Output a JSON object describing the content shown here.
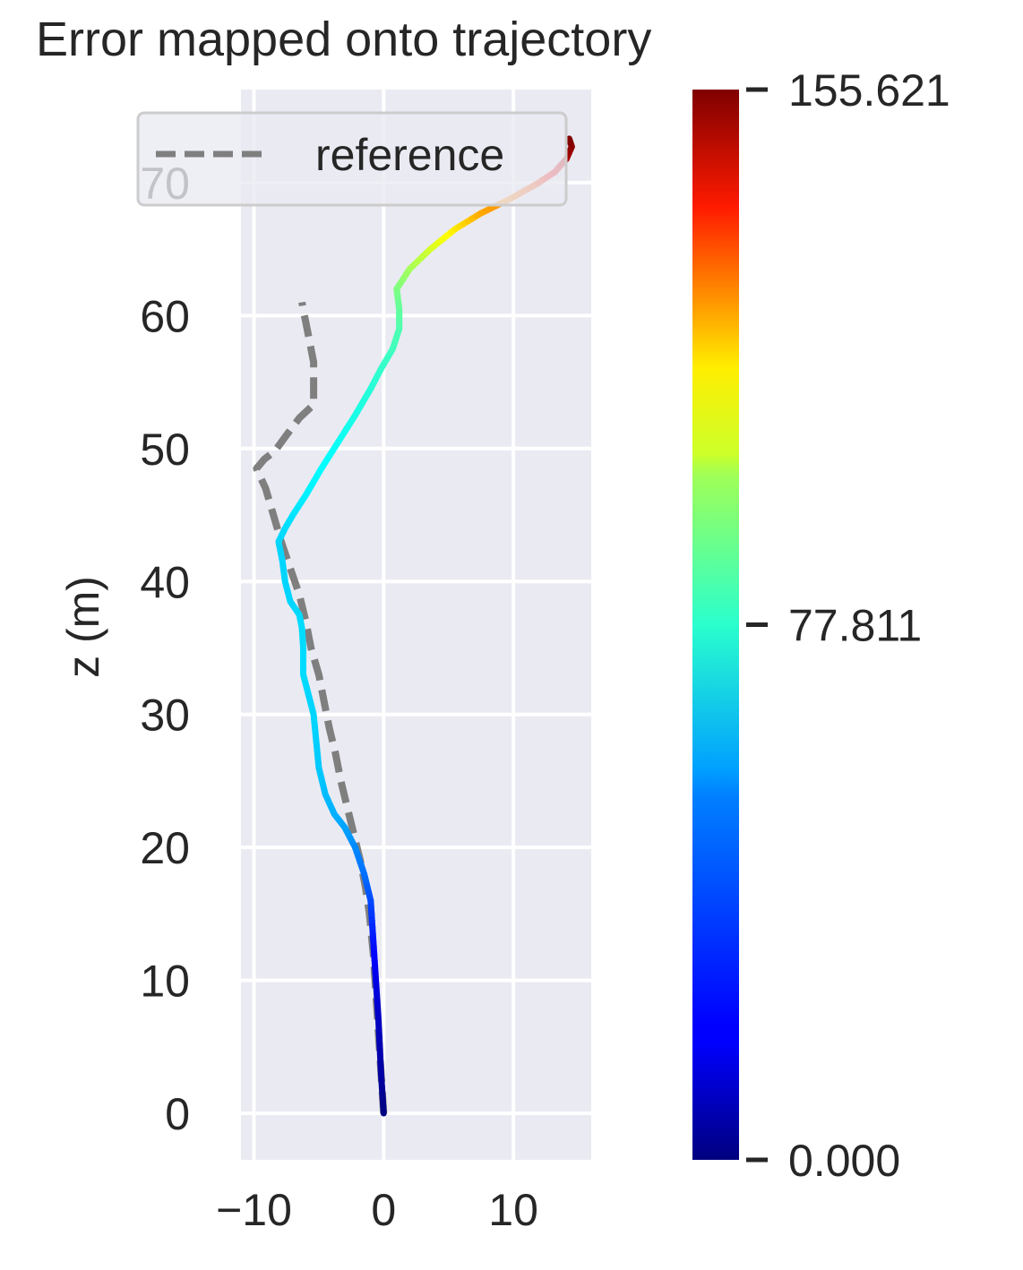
{
  "chart_data": {
    "type": "line",
    "title": "Error mapped onto trajectory",
    "xlabel": "",
    "ylabel": "z (m)",
    "xlim": [
      -11,
      16
    ],
    "ylim": [
      -3.5,
      77
    ],
    "x_ticks": [
      -10,
      0,
      10
    ],
    "x_tick_labels": [
      "−10",
      "0",
      "10"
    ],
    "y_ticks": [
      0,
      10,
      20,
      30,
      40,
      50,
      60,
      70
    ],
    "y_tick_labels": [
      "0",
      "10",
      "20",
      "30",
      "40",
      "50",
      "60",
      "70"
    ],
    "grid": true,
    "legend": {
      "placement": "top-left",
      "entries": [
        "reference"
      ]
    },
    "series": [
      {
        "name": "reference",
        "style": "dashed",
        "color": "#7f7f7f",
        "points": [
          [
            0,
            0
          ],
          [
            -0.2,
            3
          ],
          [
            -0.4,
            6
          ],
          [
            -0.6,
            9
          ],
          [
            -0.8,
            12
          ],
          [
            -1.1,
            15
          ],
          [
            -1.4,
            17
          ],
          [
            -1.8,
            19
          ],
          [
            -2.3,
            21
          ],
          [
            -2.8,
            23
          ],
          [
            -3.3,
            25
          ],
          [
            -3.7,
            27
          ],
          [
            -4.2,
            29
          ],
          [
            -4.6,
            31
          ],
          [
            -5.0,
            33
          ],
          [
            -5.6,
            35
          ],
          [
            -6.0,
            37
          ],
          [
            -6.5,
            39
          ],
          [
            -7.2,
            41
          ],
          [
            -7.9,
            43
          ],
          [
            -8.5,
            45
          ],
          [
            -9.1,
            47
          ],
          [
            -9.8,
            48.5
          ],
          [
            -9.2,
            49.2
          ],
          [
            -8.4,
            49.8
          ],
          [
            -7.5,
            51
          ],
          [
            -6.5,
            52.3
          ],
          [
            -5.4,
            53.3
          ],
          [
            -5.4,
            54.5
          ],
          [
            -5.4,
            55.5
          ],
          [
            -5.4,
            56.5
          ],
          [
            -5.6,
            57.5
          ],
          [
            -5.8,
            58.5
          ],
          [
            -6.0,
            59.5
          ],
          [
            -6.2,
            60.4
          ],
          [
            -6.3,
            61
          ]
        ]
      },
      {
        "name": "",
        "style": "solid",
        "colormap": "jet",
        "points": [
          [
            0,
            0
          ],
          [
            -0.2,
            3
          ],
          [
            -0.4,
            7
          ],
          [
            -0.6,
            10
          ],
          [
            -0.8,
            13
          ],
          [
            -1.0,
            16
          ],
          [
            -1.5,
            18
          ],
          [
            -2.2,
            20
          ],
          [
            -3.0,
            21.5
          ],
          [
            -3.8,
            22.5
          ],
          [
            -4.5,
            24
          ],
          [
            -5.0,
            26
          ],
          [
            -5.2,
            28
          ],
          [
            -5.4,
            30
          ],
          [
            -5.8,
            31.5
          ],
          [
            -6.2,
            33
          ],
          [
            -6.2,
            35
          ],
          [
            -6.3,
            36.5
          ],
          [
            -6.5,
            37.5
          ],
          [
            -7.2,
            38.5
          ],
          [
            -7.6,
            40
          ],
          [
            -7.8,
            41.5
          ],
          [
            -8.1,
            43
          ],
          [
            -7.6,
            44
          ],
          [
            -7.0,
            45
          ],
          [
            -6.0,
            46.5
          ],
          [
            -4.8,
            48.5
          ],
          [
            -3.5,
            50.5
          ],
          [
            -2.2,
            52.5
          ],
          [
            -1.0,
            54.5
          ],
          [
            -0.2,
            56
          ],
          [
            0.7,
            57.5
          ],
          [
            1.2,
            59
          ],
          [
            1.2,
            60.5
          ],
          [
            1.0,
            62
          ],
          [
            2.0,
            63.5
          ],
          [
            3.6,
            65
          ],
          [
            5.5,
            66.5
          ],
          [
            7.5,
            67.7
          ],
          [
            9.8,
            68.8
          ],
          [
            11.8,
            69.9
          ],
          [
            13.2,
            70.8
          ],
          [
            14.1,
            71.8
          ],
          [
            14.5,
            72.7
          ],
          [
            14.3,
            73.3
          ]
        ],
        "error": [
          0,
          5,
          10,
          15,
          22,
          30,
          36,
          40,
          44,
          46,
          48,
          50,
          51,
          52,
          52,
          53,
          53,
          53,
          53,
          52,
          52,
          52,
          52,
          53,
          54,
          56,
          58,
          60,
          62,
          64,
          66,
          68,
          70,
          73,
          77,
          83,
          90,
          100,
          110,
          115,
          125,
          138,
          148,
          153,
          155.621
        ]
      }
    ],
    "colorbar": {
      "colormap": "jet",
      "min": 0.0,
      "max": 155.621,
      "ticks": [
        0.0,
        77.811,
        155.621
      ],
      "tick_labels": [
        "0.000",
        "77.811",
        "155.621"
      ]
    }
  },
  "colors": {
    "plot_background": "#eaeaf2",
    "grid": "#ffffff",
    "text": "#262626",
    "reference_line": "#7f7f7f"
  }
}
